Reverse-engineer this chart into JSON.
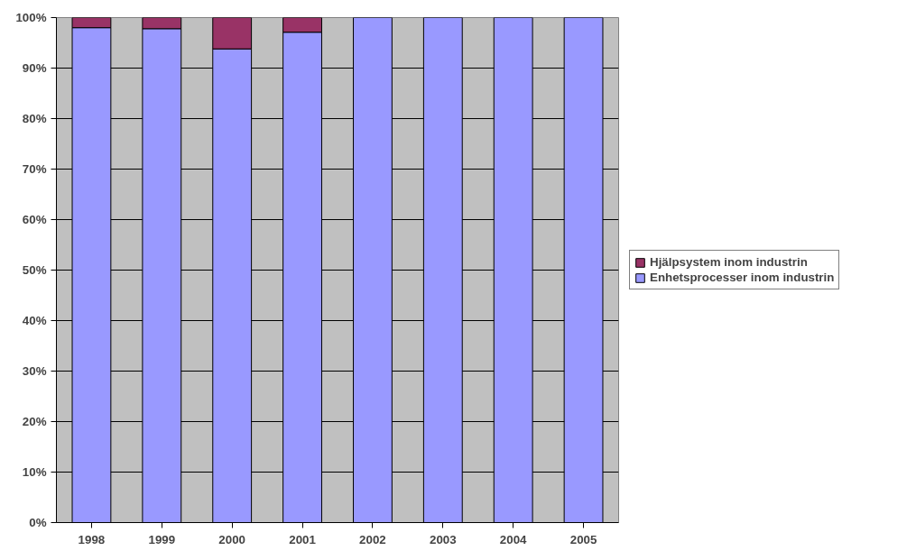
{
  "chart_data": {
    "type": "bar",
    "stacked": true,
    "categories": [
      "1998",
      "1999",
      "2000",
      "2001",
      "2002",
      "2003",
      "2004",
      "2005"
    ],
    "series": [
      {
        "name": "Enhetsprocesser inom industrin",
        "color": "#9999ff",
        "values": [
          98,
          97.8,
          93.8,
          97.1,
          100,
          100,
          100,
          100
        ]
      },
      {
        "name": "Hjälpsystem inom industrin",
        "color": "#993366",
        "values": [
          2,
          2.2,
          6.2,
          2.9,
          0,
          0,
          0,
          0
        ]
      }
    ],
    "ylim": [
      0,
      100
    ],
    "yticks": [
      {
        "value": 0,
        "label": "0%"
      },
      {
        "value": 10,
        "label": "10%"
      },
      {
        "value": 20,
        "label": "20%"
      },
      {
        "value": 30,
        "label": "30%"
      },
      {
        "value": 40,
        "label": "40%"
      },
      {
        "value": 50,
        "label": "50%"
      },
      {
        "value": 60,
        "label": "60%"
      },
      {
        "value": 70,
        "label": "70%"
      },
      {
        "value": 80,
        "label": "80%"
      },
      {
        "value": 90,
        "label": "90%"
      },
      {
        "value": 100,
        "label": "100%"
      }
    ],
    "grid": "y",
    "legend": "right"
  }
}
